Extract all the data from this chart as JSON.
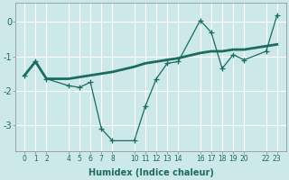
{
  "xlabel": "Humidex (Indice chaleur)",
  "background_color": "#cce8e8",
  "grid_color": "#b0d4d4",
  "line_color": "#1a6b60",
  "x_ticks": [
    0,
    1,
    2,
    4,
    5,
    6,
    7,
    8,
    10,
    11,
    12,
    13,
    14,
    16,
    17,
    18,
    19,
    20,
    22,
    23
  ],
  "line1_x": [
    0,
    1,
    2,
    4,
    5,
    6,
    7,
    8,
    10,
    11,
    12,
    13,
    14,
    16,
    17,
    18,
    19,
    20,
    22,
    23
  ],
  "line1_y": [
    -1.55,
    -1.15,
    -1.65,
    -1.85,
    -1.9,
    -1.75,
    -3.1,
    -3.45,
    -3.45,
    -2.45,
    -1.65,
    -1.2,
    -1.15,
    0.05,
    -0.3,
    -1.35,
    -0.95,
    -1.1,
    -0.85,
    0.2
  ],
  "line2_x": [
    0,
    1,
    2,
    4,
    5,
    6,
    7,
    8,
    10,
    11,
    12,
    13,
    14,
    16,
    17,
    18,
    19,
    20,
    22,
    23
  ],
  "line2_y": [
    -1.55,
    -1.15,
    -1.65,
    -1.65,
    -1.6,
    -1.55,
    -1.5,
    -1.45,
    -1.3,
    -1.2,
    -1.15,
    -1.1,
    -1.05,
    -0.9,
    -0.85,
    -0.85,
    -0.8,
    -0.8,
    -0.7,
    -0.65
  ],
  "y_ticks": [
    0,
    -1,
    -2,
    -3
  ],
  "y_tick_labels": [
    "0",
    "-1",
    "-2",
    "-3"
  ],
  "ylim": [
    -3.75,
    0.55
  ],
  "xlim": [
    -0.8,
    23.8
  ]
}
